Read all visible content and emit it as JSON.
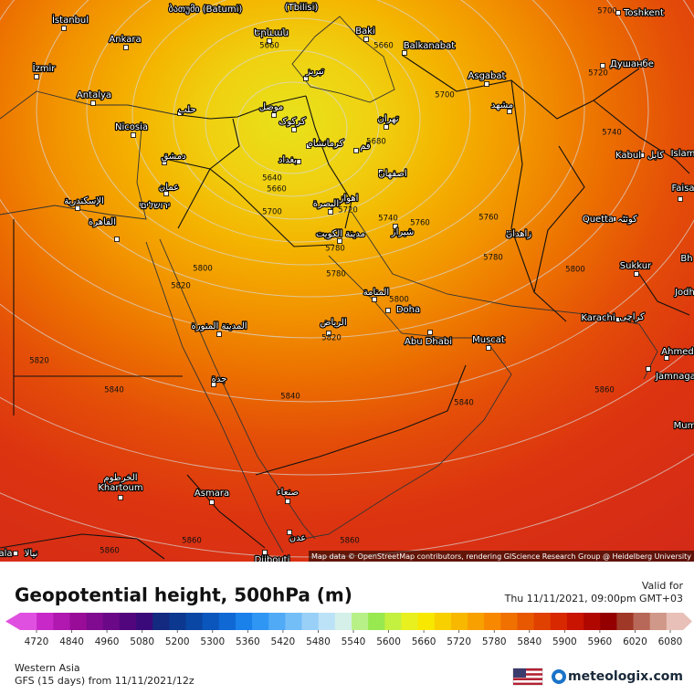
{
  "map": {
    "cities": [
      "İstanbul",
      "Ankara",
      "İzmir",
      "Antalya",
      "Nicosia",
      "ბათუმი (Batumi)",
      "(Tbilisi)",
      "Երևան",
      "Baki",
      "Balkanabat",
      "Asgabat",
      "Toshkent",
      "Душанбе",
      "تبریز",
      "موصل",
      "حلب",
      "کرکوک",
      "تهران",
      "مشهد",
      "دمشق",
      "بغداد",
      "کرمانشاه",
      "قم",
      "اصفهان",
      "Kabul",
      "کابل",
      "Islam",
      "عمان",
      "ירושלים",
      "الإسكندرية",
      "القاهرة",
      "اهواز",
      "البصرة",
      "مدينة الكويت",
      "شیراز",
      "زاهدان",
      "Quetta",
      "کوئٹہ",
      "Faisa",
      "Sukkur",
      "Bh",
      "المنامة",
      "Doha",
      "Karachi",
      "کراچی",
      "Jodh",
      "الرياض",
      "المدينة المنورة",
      "Abu Dhabi",
      "Muscat",
      "Ahmed",
      "Jamnaga",
      "جدة",
      "Mum",
      "الخرطوم",
      "Khartoum",
      "Asmara",
      "صنعاء",
      "عدن",
      "Djibouti",
      "ala",
      "نیالا"
    ],
    "contour_labels": [
      5660,
      5660,
      5700,
      5720,
      5700,
      5740,
      5680,
      5640,
      5660,
      5700,
      5720,
      5740,
      5760,
      5760,
      5780,
      5780,
      5780,
      5800,
      5800,
      5820,
      5800,
      5820,
      5820,
      5840,
      5840,
      5840,
      5860,
      5860,
      5860,
      5860
    ],
    "attribution": "Map data © OpenStreetMap contributors, rendering GIScience Research Group @ Heidelberg University"
  },
  "legend": {
    "title": "Geopotential height, 500hPa (m)",
    "valid_label": "Valid for",
    "valid_time": "Thu 11/11/2021, 09:00pm GMT+03",
    "region": "Western Asia",
    "model": "GFS (15 days) from 11/11/2021/12z",
    "brand": "meteologix.com",
    "ticks": [
      4720,
      4840,
      4960,
      5080,
      5200,
      5300,
      5360,
      5420,
      5480,
      5540,
      5600,
      5660,
      5720,
      5780,
      5840,
      5900,
      5960,
      6020,
      6080
    ],
    "colors": [
      "#e050e0",
      "#c828c8",
      "#b018b0",
      "#980c98",
      "#800a90",
      "#6a0888",
      "#52067e",
      "#3a0a7a",
      "#142a80",
      "#0c3890",
      "#0a46a4",
      "#0a56bc",
      "#1068d4",
      "#1a80ea",
      "#3096f4",
      "#50aaf6",
      "#74bef8",
      "#98d0f8",
      "#bce2f8",
      "#d4f0e8",
      "#b8f088",
      "#98e850",
      "#c4f040",
      "#e8f020",
      "#f8e800",
      "#f8d000",
      "#f8b800",
      "#f8a000",
      "#f88800",
      "#f07000",
      "#e85800",
      "#e04000",
      "#d82800",
      "#c81400",
      "#b00800",
      "#940000",
      "#a03828",
      "#b86858",
      "#d09888",
      "#e8c0b8"
    ]
  }
}
